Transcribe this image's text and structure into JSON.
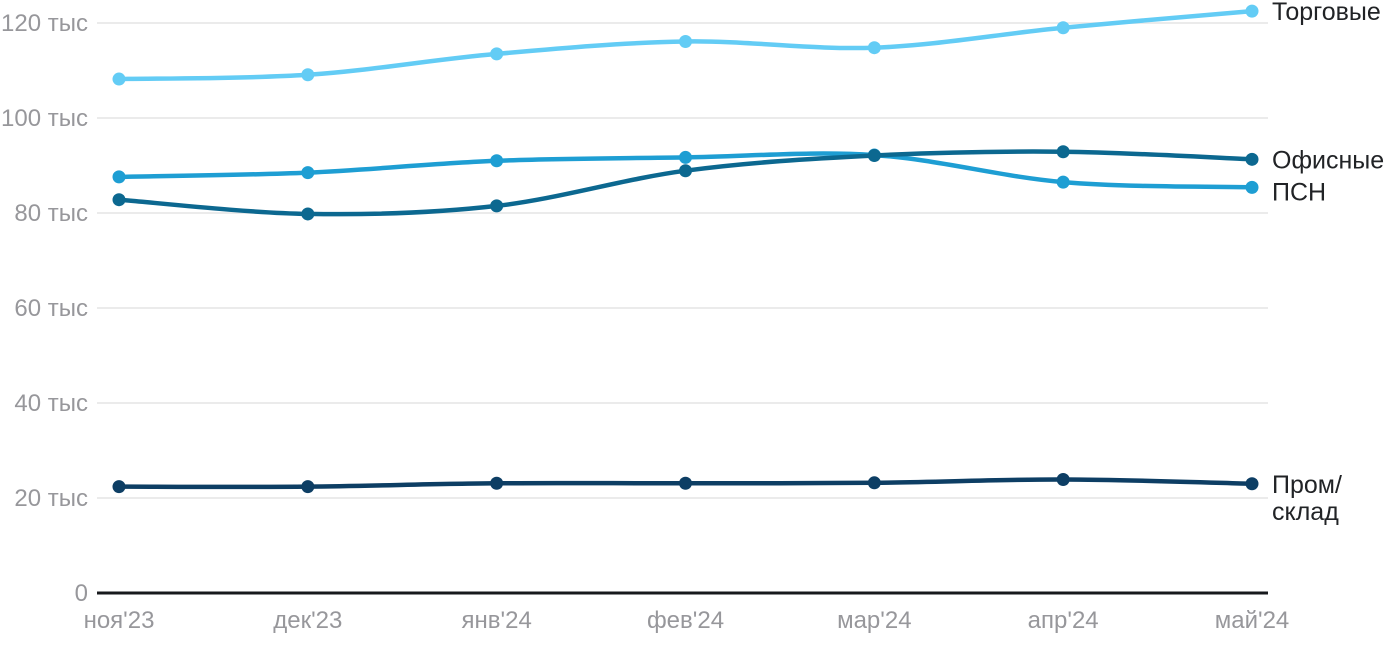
{
  "chart_data": {
    "type": "line",
    "title": "",
    "xlabel": "",
    "ylabel": "",
    "unit_suffix": "тыс",
    "categories": [
      "ноя'23",
      "дек'23",
      "янв'24",
      "фев'24",
      "мар'24",
      "апр'24",
      "май'24"
    ],
    "series": [
      {
        "name": "Торговые",
        "legend_lines": [
          "Торговые"
        ],
        "color": "#63CCF5",
        "values": [
          108.2,
          109.1,
          113.5,
          116.1,
          114.8,
          119.0,
          122.5
        ]
      },
      {
        "name": "Офисные",
        "legend_lines": [
          "Офисные"
        ],
        "color": "#0C6890",
        "values": [
          82.8,
          79.8,
          81.5,
          88.9,
          92.1,
          92.9,
          91.3
        ]
      },
      {
        "name": "ПСН",
        "legend_lines": [
          "ПСН"
        ],
        "color": "#1E9ED3",
        "values": [
          87.6,
          88.5,
          91.0,
          91.7,
          92.2,
          86.5,
          85.4
        ]
      },
      {
        "name": "Пром/склад",
        "legend_lines": [
          "Пром/",
          "склад"
        ],
        "color": "#0D3E64",
        "values": [
          22.4,
          22.4,
          23.1,
          23.1,
          23.2,
          23.9,
          23.0
        ]
      }
    ],
    "yticks": [
      {
        "value": 0,
        "label": "0"
      },
      {
        "value": 20,
        "label": "20 тыс"
      },
      {
        "value": 40,
        "label": "40 тыс"
      },
      {
        "value": 60,
        "label": "60 тыс"
      },
      {
        "value": 80,
        "label": "80 тыс"
      },
      {
        "value": 100,
        "label": "100 тыс"
      },
      {
        "value": 120,
        "label": "120 тыс"
      }
    ],
    "ylim": [
      0,
      125
    ],
    "grid": true,
    "legend_position": "right"
  },
  "colors": {
    "background": "#ffffff",
    "grid": "#ebebeb",
    "axis": "#17191d",
    "tick_label": "#97979b",
    "legend_label": "#212326"
  }
}
